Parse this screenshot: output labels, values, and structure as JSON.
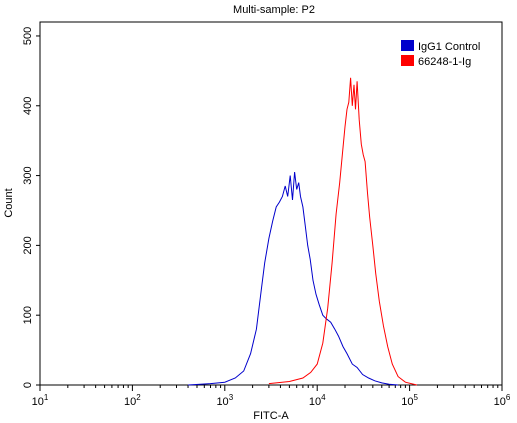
{
  "chart_data": {
    "type": "line",
    "title": "Multi-sample: P2",
    "xlabel": "FITC-A",
    "ylabel": "Count",
    "x_scale": "log",
    "xlim": [
      10,
      1000000
    ],
    "ylim": [
      0,
      520
    ],
    "x_ticks": [
      {
        "value": 10,
        "base": "10",
        "exp": "1"
      },
      {
        "value": 100,
        "base": "10",
        "exp": "2"
      },
      {
        "value": 1000,
        "base": "10",
        "exp": "3"
      },
      {
        "value": 10000,
        "base": "10",
        "exp": "4"
      },
      {
        "value": 100000,
        "base": "10",
        "exp": "5"
      },
      {
        "value": 1000000,
        "base": "10",
        "exp": "6"
      }
    ],
    "y_ticks": [
      0,
      100,
      200,
      300,
      400,
      500
    ],
    "grid": false,
    "legend_position": "top-right",
    "series": [
      {
        "name": "IgG1 Control",
        "color": "#0000cc",
        "x": [
          400,
          700,
          1000,
          1300,
          1600,
          1900,
          2200,
          2500,
          2700,
          3000,
          3300,
          3600,
          3900,
          4200,
          4500,
          4800,
          5100,
          5400,
          5700,
          6000,
          6300,
          6600,
          7000,
          7400,
          7900,
          8400,
          9000,
          9700,
          10500,
          11500,
          12500,
          14000,
          15500,
          17000,
          19000,
          21000,
          24000,
          27000,
          31000,
          36000,
          42000,
          50000,
          60000,
          75000
        ],
        "y": [
          0,
          2,
          4,
          10,
          20,
          45,
          80,
          140,
          175,
          210,
          235,
          255,
          262,
          270,
          285,
          270,
          300,
          265,
          305,
          280,
          290,
          270,
          255,
          230,
          200,
          180,
          150,
          130,
          115,
          100,
          95,
          90,
          80,
          70,
          55,
          45,
          30,
          25,
          15,
          10,
          6,
          3,
          1,
          0
        ]
      },
      {
        "name": "66248-1-Ig",
        "color": "#ff0000",
        "x": [
          3000,
          5000,
          7000,
          8500,
          10000,
          11500,
          13000,
          14500,
          16000,
          17500,
          19000,
          20000,
          21000,
          22000,
          23000,
          24000,
          25000,
          26000,
          27000,
          28500,
          30000,
          31500,
          33000,
          35000,
          37000,
          40000,
          43000,
          47000,
          52000,
          58000,
          65000,
          75000,
          90000,
          120000
        ],
        "y": [
          2,
          5,
          10,
          18,
          30,
          60,
          110,
          175,
          245,
          290,
          340,
          370,
          395,
          405,
          440,
          400,
          430,
          395,
          435,
          380,
          345,
          330,
          320,
          275,
          240,
          200,
          160,
          120,
          85,
          55,
          30,
          12,
          4,
          0
        ]
      }
    ]
  }
}
